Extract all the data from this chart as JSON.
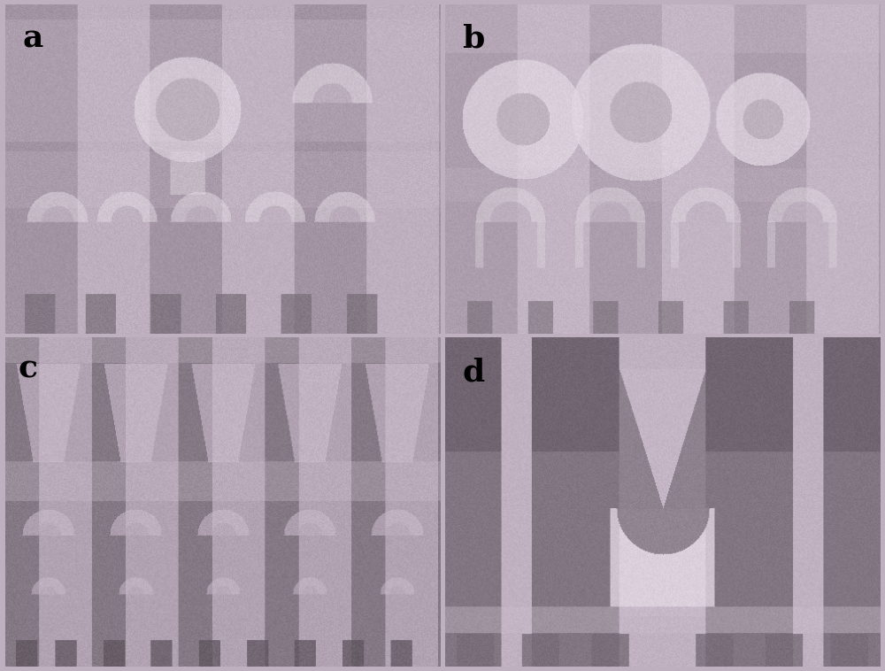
{
  "labels": [
    "a",
    "b",
    "c",
    "d"
  ],
  "col_light": [
    205,
    190,
    205
  ],
  "col_mid": [
    178,
    163,
    178
  ],
  "col_dark": [
    148,
    133,
    148
  ],
  "col_darker": [
    120,
    108,
    120
  ],
  "col_darkest": [
    95,
    85,
    95
  ],
  "col_white": [
    225,
    215,
    225
  ],
  "fig_bg": [
    190,
    175,
    190
  ],
  "border_color": "#111111",
  "label_fontsize": 26
}
